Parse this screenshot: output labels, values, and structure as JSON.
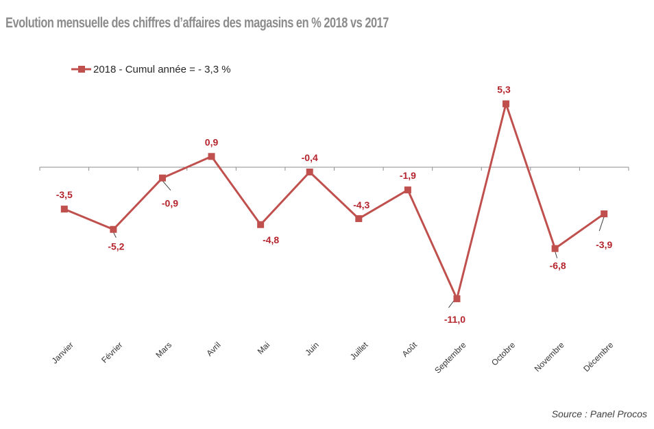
{
  "chart_data": {
    "type": "line",
    "title": "Evolution mensuelle des chiffres d’affaires des magasins en % 2018 vs 2017",
    "categories": [
      "Janvier",
      "Février",
      "Mars",
      "Avril",
      "Mai",
      "Juin",
      "Juillet",
      "Août",
      "Septembre",
      "Octobre",
      "Novembre",
      "Décembre"
    ],
    "series": [
      {
        "name": "2018 - Cumul année = - 3,3 %",
        "values": [
          -3.5,
          -5.2,
          -0.9,
          0.9,
          -4.8,
          -0.4,
          -4.3,
          -1.9,
          -11.0,
          5.3,
          -6.8,
          -3.9
        ],
        "labels": [
          "-3,5",
          "-5,2",
          "-0,9",
          "0,9",
          "-4,8",
          "-0,4",
          "-4,3",
          "-1,9",
          "-11,0",
          "5,3",
          "-6,8",
          "-3,9"
        ],
        "color": "#c0504d"
      }
    ],
    "xlabel": "",
    "ylabel": "",
    "ylim": [
      -11.0,
      5.3
    ],
    "grid": false,
    "legend": "top-left"
  },
  "source": "Source : Panel Procos",
  "colors": {
    "line": "#c0504d",
    "label": "#b5242c",
    "axis": "#8c8c8c"
  }
}
